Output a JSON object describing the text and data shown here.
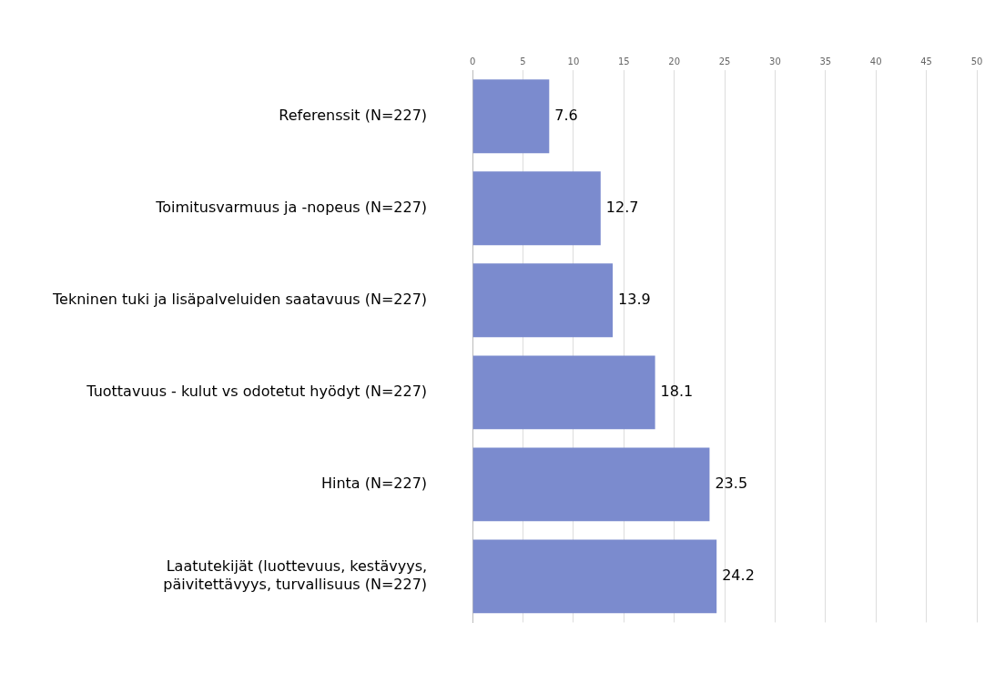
{
  "chart_data": {
    "type": "bar",
    "orientation": "horizontal",
    "categories": [
      "Referenssit (N=227)",
      "Toimitusvarmuus ja -nopeus (N=227)",
      "Tekninen tuki ja lisäpalveluiden saatavuus (N=227)",
      "Tuottavuus - kulut vs odotetut hyödyt (N=227)",
      "Hinta (N=227)",
      "Laatutekijät (luottevuus, kestävyys, päivitettävyys, turvallisuus (N=227)"
    ],
    "values": [
      7.6,
      12.7,
      13.9,
      18.1,
      23.5,
      24.2
    ],
    "color": "#7b8bce",
    "xlim": [
      0,
      50
    ],
    "xticks": [
      0,
      5,
      10,
      15,
      20,
      25,
      30,
      35,
      40,
      45,
      50
    ],
    "grid": "x",
    "legend": false,
    "data_labels": true
  }
}
